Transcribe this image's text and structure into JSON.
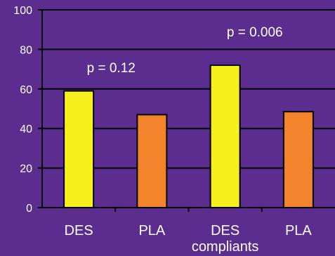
{
  "colors": {
    "background": "#5b2d8e",
    "axis": "#000000",
    "grid": "#000000",
    "text": "#ffffff",
    "des_bar": "#f8f01c",
    "pla_bar": "#f4842c"
  },
  "chart_data": {
    "type": "bar",
    "categories": [
      "DES",
      "PLA",
      "DES",
      "PLA"
    ],
    "category_sublabel": "compliants",
    "values": [
      59,
      47,
      72,
      48.5
    ],
    "bar_colors": [
      "#f8f01c",
      "#f4842c",
      "#f8f01c",
      "#f4842c"
    ],
    "ylim": [
      0,
      100
    ],
    "yticks": [
      0,
      20,
      40,
      60,
      80,
      100
    ],
    "grid": true,
    "title": "",
    "xlabel": "",
    "ylabel": "",
    "annotations": [
      {
        "text": "p = 0.12",
        "group": 0
      },
      {
        "text": "p = 0.006",
        "group": 1
      }
    ]
  }
}
